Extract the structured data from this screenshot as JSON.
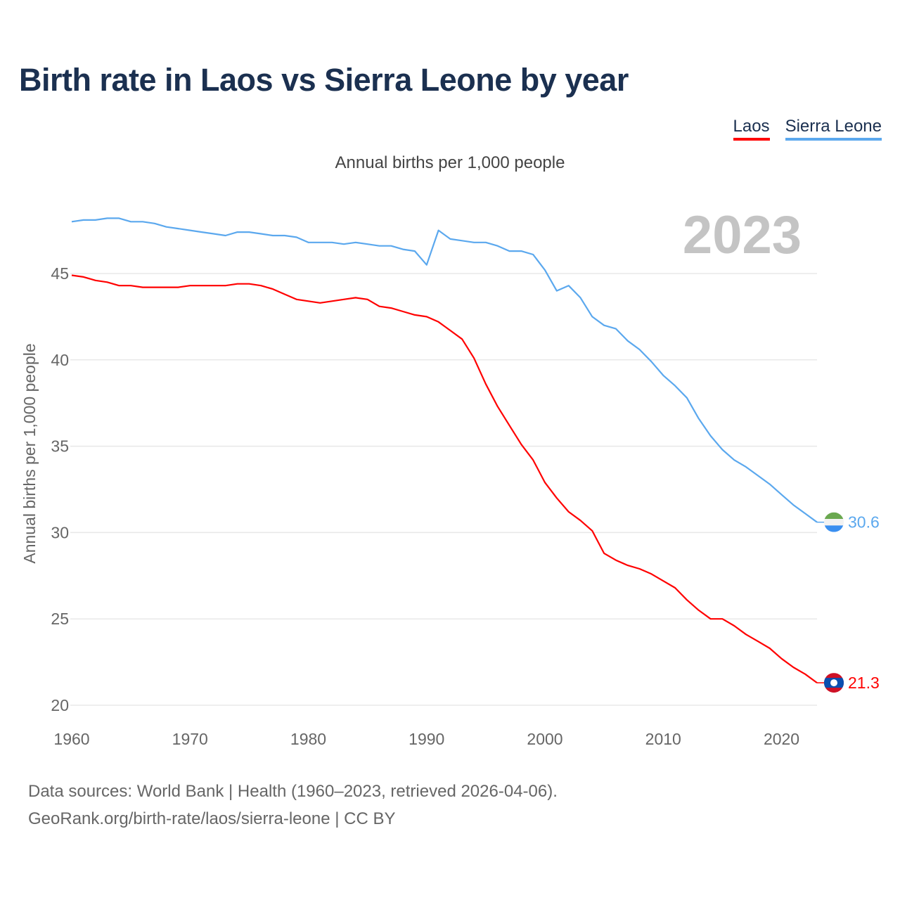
{
  "title": "Birth rate in Laos vs Sierra Leone by year",
  "subtitle": "Annual births per 1,000 people",
  "year_watermark": "2023",
  "footer": {
    "line1": "Data sources: World Bank | Health (1960–2023, retrieved 2026-04-06).",
    "line2": "GeoRank.org/birth-rate/laos/sierra-leone | CC BY"
  },
  "chart_data": {
    "type": "line",
    "title": "Birth rate in Laos vs Sierra Leone by year",
    "xlabel": "",
    "ylabel": "Annual births per 1,000 people",
    "xlim": [
      1960,
      2023
    ],
    "ylim": [
      20,
      48.5
    ],
    "grid": true,
    "legend_position": "top-right",
    "x_ticks": [
      1960,
      1970,
      1980,
      1990,
      2000,
      2010,
      2020
    ],
    "y_ticks": [
      20,
      25,
      30,
      35,
      40,
      45
    ],
    "x": [
      1960,
      1961,
      1962,
      1963,
      1964,
      1965,
      1966,
      1967,
      1968,
      1969,
      1970,
      1971,
      1972,
      1973,
      1974,
      1975,
      1976,
      1977,
      1978,
      1979,
      1980,
      1981,
      1982,
      1983,
      1984,
      1985,
      1986,
      1987,
      1988,
      1989,
      1990,
      1991,
      1992,
      1993,
      1994,
      1995,
      1996,
      1997,
      1998,
      1999,
      2000,
      2001,
      2002,
      2003,
      2004,
      2005,
      2006,
      2007,
      2008,
      2009,
      2010,
      2011,
      2012,
      2013,
      2014,
      2015,
      2016,
      2017,
      2018,
      2019,
      2020,
      2021,
      2022,
      2023
    ],
    "series": [
      {
        "name": "Laos",
        "color": "#ff0000",
        "end_label": "21.3",
        "values": [
          44.9,
          44.8,
          44.6,
          44.5,
          44.3,
          44.3,
          44.2,
          44.2,
          44.2,
          44.2,
          44.3,
          44.3,
          44.3,
          44.3,
          44.4,
          44.4,
          44.3,
          44.1,
          43.8,
          43.5,
          43.4,
          43.3,
          43.4,
          43.5,
          43.6,
          43.5,
          43.1,
          43.0,
          42.8,
          42.6,
          42.5,
          42.2,
          41.7,
          41.2,
          40.1,
          38.6,
          37.3,
          36.2,
          35.1,
          34.2,
          32.9,
          32.0,
          31.2,
          30.7,
          30.1,
          28.8,
          28.4,
          28.1,
          27.9,
          27.6,
          27.2,
          26.8,
          26.1,
          25.5,
          25.0,
          25.0,
          24.6,
          24.1,
          23.7,
          23.3,
          22.7,
          22.2,
          21.8,
          21.3
        ]
      },
      {
        "name": "Sierra Leone",
        "color": "#5ba8ee",
        "end_label": "30.6",
        "values": [
          48.0,
          48.1,
          48.1,
          48.2,
          48.2,
          48.0,
          48.0,
          47.9,
          47.7,
          47.6,
          47.5,
          47.4,
          47.3,
          47.2,
          47.4,
          47.4,
          47.3,
          47.2,
          47.2,
          47.1,
          46.8,
          46.8,
          46.8,
          46.7,
          46.8,
          46.7,
          46.6,
          46.6,
          46.4,
          46.3,
          45.5,
          47.5,
          47.0,
          46.9,
          46.8,
          46.8,
          46.6,
          46.3,
          46.3,
          46.1,
          45.2,
          44.0,
          44.3,
          43.6,
          42.5,
          42.0,
          41.8,
          41.1,
          40.6,
          39.9,
          39.1,
          38.5,
          37.8,
          36.6,
          35.6,
          34.8,
          34.2,
          33.8,
          33.3,
          32.8,
          32.2,
          31.6,
          31.1,
          30.6
        ]
      }
    ]
  }
}
